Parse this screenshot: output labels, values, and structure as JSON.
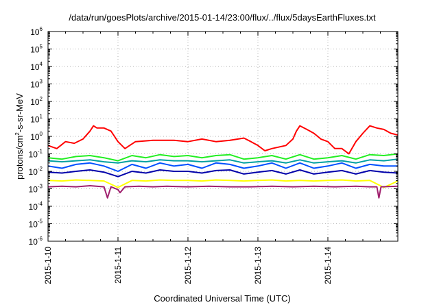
{
  "chart_data": {
    "type": "line",
    "title": "/data/run/goesPlots/archive/2015-01-14/23:00/flux/../flux/5daysEarthFluxes.txt",
    "xlabel": "Coordinated Universal Time (UTC)",
    "ylabel": {
      "base": "protons/cm",
      "sup": "2",
      "rest": "-s-sr-MeV"
    },
    "y_scale": "log",
    "ylim": [
      1e-06,
      1000000.0
    ],
    "y_ticks": [
      {
        "value": 1e-06,
        "base": "10",
        "exp": "-6"
      },
      {
        "value": 1e-05,
        "base": "10",
        "exp": "-5"
      },
      {
        "value": 0.0001,
        "base": "10",
        "exp": "-4"
      },
      {
        "value": 0.001,
        "base": "10",
        "exp": "-3"
      },
      {
        "value": 0.01,
        "base": "10",
        "exp": "-2"
      },
      {
        "value": 0.1,
        "base": "10",
        "exp": "-1"
      },
      {
        "value": 1,
        "base": "10",
        "exp": "0"
      },
      {
        "value": 10,
        "base": "10",
        "exp": "1"
      },
      {
        "value": 100,
        "base": "10",
        "exp": "2"
      },
      {
        "value": 1000,
        "base": "10",
        "exp": "3"
      },
      {
        "value": 10000,
        "base": "10",
        "exp": "4"
      },
      {
        "value": 100000,
        "base": "10",
        "exp": "5"
      },
      {
        "value": 1000000,
        "base": "10",
        "exp": "6"
      }
    ],
    "xlim": [
      "2015-01-10T00:00",
      "2015-01-15T00:00"
    ],
    "x_ticks": [
      "2015-1-10",
      "2015-1-11",
      "2015-1-12",
      "2015-1-13",
      "2015-1-14"
    ],
    "grid": true,
    "series": [
      {
        "color": "#ff0000",
        "points": [
          [
            "2015-01-10T00:00",
            0.3
          ],
          [
            "2015-01-10T03:00",
            0.2
          ],
          [
            "2015-01-10T06:00",
            0.5
          ],
          [
            "2015-01-10T09:00",
            0.4
          ],
          [
            "2015-01-10T12:00",
            0.7
          ],
          [
            "2015-01-10T14:24",
            2.0
          ],
          [
            "2015-01-10T15:36",
            4.0
          ],
          [
            "2015-01-10T16:48",
            3.0
          ],
          [
            "2015-01-10T19:12",
            3.0
          ],
          [
            "2015-01-10T21:36",
            2.0
          ],
          [
            "2015-01-11T00:00",
            0.5
          ],
          [
            "2015-01-11T02:24",
            0.2
          ],
          [
            "2015-01-11T06:00",
            0.5
          ],
          [
            "2015-01-11T12:00",
            0.6
          ],
          [
            "2015-01-11T19:12",
            0.6
          ],
          [
            "2015-01-12T00:00",
            0.5
          ],
          [
            "2015-01-12T04:48",
            0.7
          ],
          [
            "2015-01-12T09:36",
            0.5
          ],
          [
            "2015-01-12T14:24",
            0.6
          ],
          [
            "2015-01-12T19:12",
            0.8
          ],
          [
            "2015-01-12T21:36",
            0.5
          ],
          [
            "2015-01-13T00:00",
            0.3
          ],
          [
            "2015-01-13T02:24",
            0.15
          ],
          [
            "2015-01-13T04:48",
            0.2
          ],
          [
            "2015-01-13T09:36",
            0.3
          ],
          [
            "2015-01-13T12:00",
            0.7
          ],
          [
            "2015-01-13T13:12",
            2.0
          ],
          [
            "2015-01-13T14:24",
            4.0
          ],
          [
            "2015-01-13T16:48",
            2.5
          ],
          [
            "2015-01-13T19:12",
            1.5
          ],
          [
            "2015-01-13T21:36",
            0.7
          ],
          [
            "2015-01-14T00:00",
            0.5
          ],
          [
            "2015-01-14T02:24",
            0.2
          ],
          [
            "2015-01-14T04:48",
            0.2
          ],
          [
            "2015-01-14T07:12",
            0.1
          ],
          [
            "2015-01-14T09:36",
            0.5
          ],
          [
            "2015-01-14T12:00",
            1.5
          ],
          [
            "2015-01-14T14:24",
            4.0
          ],
          [
            "2015-01-14T16:48",
            3.0
          ],
          [
            "2015-01-14T19:12",
            2.5
          ],
          [
            "2015-01-14T21:36",
            1.5
          ],
          [
            "2015-01-15T00:00",
            1.2
          ]
        ]
      },
      {
        "color": "#22ee22",
        "points": [
          [
            "2015-01-10T00:00",
            0.06
          ],
          [
            "2015-01-10T04:48",
            0.05
          ],
          [
            "2015-01-10T09:36",
            0.07
          ],
          [
            "2015-01-10T14:24",
            0.08
          ],
          [
            "2015-01-10T19:12",
            0.06
          ],
          [
            "2015-01-11T00:00",
            0.04
          ],
          [
            "2015-01-11T04:48",
            0.08
          ],
          [
            "2015-01-11T09:36",
            0.06
          ],
          [
            "2015-01-11T14:24",
            0.09
          ],
          [
            "2015-01-11T19:12",
            0.07
          ],
          [
            "2015-01-12T00:00",
            0.08
          ],
          [
            "2015-01-12T04:48",
            0.06
          ],
          [
            "2015-01-12T09:36",
            0.08
          ],
          [
            "2015-01-12T14:24",
            0.09
          ],
          [
            "2015-01-12T19:12",
            0.05
          ],
          [
            "2015-01-13T00:00",
            0.06
          ],
          [
            "2015-01-13T04:48",
            0.08
          ],
          [
            "2015-01-13T09:36",
            0.05
          ],
          [
            "2015-01-13T14:24",
            0.09
          ],
          [
            "2015-01-13T19:12",
            0.05
          ],
          [
            "2015-01-14T00:00",
            0.06
          ],
          [
            "2015-01-14T04:48",
            0.08
          ],
          [
            "2015-01-14T09:36",
            0.05
          ],
          [
            "2015-01-14T14:24",
            0.09
          ],
          [
            "2015-01-14T19:12",
            0.08
          ],
          [
            "2015-01-15T00:00",
            0.1
          ]
        ]
      },
      {
        "color": "#00a0a0",
        "points": [
          [
            "2015-01-10T00:00",
            0.04
          ],
          [
            "2015-01-10T04:48",
            0.035
          ],
          [
            "2015-01-10T09:36",
            0.04
          ],
          [
            "2015-01-10T14:24",
            0.045
          ],
          [
            "2015-01-10T19:12",
            0.035
          ],
          [
            "2015-01-11T00:00",
            0.03
          ],
          [
            "2015-01-11T04:48",
            0.04
          ],
          [
            "2015-01-11T09:36",
            0.035
          ],
          [
            "2015-01-11T14:24",
            0.045
          ],
          [
            "2015-01-11T19:12",
            0.04
          ],
          [
            "2015-01-12T00:00",
            0.04
          ],
          [
            "2015-01-12T04:48",
            0.035
          ],
          [
            "2015-01-12T09:36",
            0.04
          ],
          [
            "2015-01-12T14:24",
            0.045
          ],
          [
            "2015-01-12T19:12",
            0.03
          ],
          [
            "2015-01-13T00:00",
            0.035
          ],
          [
            "2015-01-13T04:48",
            0.04
          ],
          [
            "2015-01-13T09:36",
            0.03
          ],
          [
            "2015-01-13T14:24",
            0.045
          ],
          [
            "2015-01-13T19:12",
            0.03
          ],
          [
            "2015-01-14T00:00",
            0.035
          ],
          [
            "2015-01-14T04:48",
            0.04
          ],
          [
            "2015-01-14T09:36",
            0.03
          ],
          [
            "2015-01-14T14:24",
            0.045
          ],
          [
            "2015-01-14T19:12",
            0.04
          ],
          [
            "2015-01-15T00:00",
            0.05
          ]
        ]
      },
      {
        "color": "#0050ff",
        "points": [
          [
            "2015-01-10T00:00",
            0.02
          ],
          [
            "2015-01-10T04:48",
            0.015
          ],
          [
            "2015-01-10T09:36",
            0.025
          ],
          [
            "2015-01-10T14:24",
            0.03
          ],
          [
            "2015-01-10T19:12",
            0.02
          ],
          [
            "2015-01-11T00:00",
            0.01
          ],
          [
            "2015-01-11T04:48",
            0.025
          ],
          [
            "2015-01-11T09:36",
            0.015
          ],
          [
            "2015-01-11T14:24",
            0.03
          ],
          [
            "2015-01-11T19:12",
            0.02
          ],
          [
            "2015-01-12T00:00",
            0.025
          ],
          [
            "2015-01-12T04:48",
            0.015
          ],
          [
            "2015-01-12T09:36",
            0.03
          ],
          [
            "2015-01-12T14:24",
            0.025
          ],
          [
            "2015-01-12T19:12",
            0.015
          ],
          [
            "2015-01-13T00:00",
            0.02
          ],
          [
            "2015-01-13T04:48",
            0.03
          ],
          [
            "2015-01-13T09:36",
            0.015
          ],
          [
            "2015-01-13T14:24",
            0.03
          ],
          [
            "2015-01-13T19:12",
            0.015
          ],
          [
            "2015-01-14T00:00",
            0.02
          ],
          [
            "2015-01-14T04:48",
            0.03
          ],
          [
            "2015-01-14T09:36",
            0.015
          ],
          [
            "2015-01-14T14:24",
            0.025
          ],
          [
            "2015-01-14T19:12",
            0.02
          ],
          [
            "2015-01-15T00:00",
            0.02
          ]
        ]
      },
      {
        "color": "#0000aa",
        "points": [
          [
            "2015-01-10T00:00",
            0.009
          ],
          [
            "2015-01-10T04:48",
            0.008
          ],
          [
            "2015-01-10T09:36",
            0.01
          ],
          [
            "2015-01-10T14:24",
            0.012
          ],
          [
            "2015-01-10T19:12",
            0.009
          ],
          [
            "2015-01-11T00:00",
            0.005
          ],
          [
            "2015-01-11T04:48",
            0.01
          ],
          [
            "2015-01-11T09:36",
            0.008
          ],
          [
            "2015-01-11T14:24",
            0.012
          ],
          [
            "2015-01-11T19:12",
            0.01
          ],
          [
            "2015-01-12T00:00",
            0.01
          ],
          [
            "2015-01-12T04:48",
            0.008
          ],
          [
            "2015-01-12T09:36",
            0.011
          ],
          [
            "2015-01-12T14:24",
            0.012
          ],
          [
            "2015-01-12T19:12",
            0.007
          ],
          [
            "2015-01-13T00:00",
            0.009
          ],
          [
            "2015-01-13T04:48",
            0.011
          ],
          [
            "2015-01-13T09:36",
            0.007
          ],
          [
            "2015-01-13T14:24",
            0.012
          ],
          [
            "2015-01-13T19:12",
            0.007
          ],
          [
            "2015-01-14T00:00",
            0.009
          ],
          [
            "2015-01-14T04:48",
            0.011
          ],
          [
            "2015-01-14T09:36",
            0.007
          ],
          [
            "2015-01-14T14:24",
            0.011
          ],
          [
            "2015-01-14T19:12",
            0.009
          ],
          [
            "2015-01-15T00:00",
            0.008
          ]
        ]
      },
      {
        "color": "#ffff00",
        "points": [
          [
            "2015-01-10T00:00",
            0.003
          ],
          [
            "2015-01-10T04:48",
            0.0028
          ],
          [
            "2015-01-10T09:36",
            0.0032
          ],
          [
            "2015-01-10T14:24",
            0.003
          ],
          [
            "2015-01-10T19:12",
            0.0028
          ],
          [
            "2015-01-11T00:00",
            0.0012
          ],
          [
            "2015-01-11T04:48",
            0.003
          ],
          [
            "2015-01-11T09:36",
            0.0028
          ],
          [
            "2015-01-11T14:24",
            0.0032
          ],
          [
            "2015-01-11T19:12",
            0.003
          ],
          [
            "2015-01-12T00:00",
            0.003
          ],
          [
            "2015-01-12T04:48",
            0.0028
          ],
          [
            "2015-01-12T09:36",
            0.0032
          ],
          [
            "2015-01-12T14:24",
            0.003
          ],
          [
            "2015-01-12T19:12",
            0.0028
          ],
          [
            "2015-01-13T00:00",
            0.003
          ],
          [
            "2015-01-13T04:48",
            0.0032
          ],
          [
            "2015-01-13T09:36",
            0.0028
          ],
          [
            "2015-01-13T14:24",
            0.003
          ],
          [
            "2015-01-13T19:12",
            0.0028
          ],
          [
            "2015-01-14T00:00",
            0.003
          ],
          [
            "2015-01-14T04:48",
            0.0032
          ],
          [
            "2015-01-14T09:36",
            0.0028
          ],
          [
            "2015-01-14T14:24",
            0.003
          ],
          [
            "2015-01-14T19:12",
            0.0012
          ],
          [
            "2015-01-15T00:00",
            0.0028
          ]
        ]
      },
      {
        "color": "#a0206e",
        "points": [
          [
            "2015-01-10T00:00",
            0.0013
          ],
          [
            "2015-01-10T04:48",
            0.0014
          ],
          [
            "2015-01-10T09:36",
            0.0013
          ],
          [
            "2015-01-10T14:24",
            0.0015
          ],
          [
            "2015-01-10T19:12",
            0.0013
          ],
          [
            "2015-01-10T20:24",
            0.0003
          ],
          [
            "2015-01-10T21:36",
            0.0013
          ],
          [
            "2015-01-11T00:00",
            0.0009
          ],
          [
            "2015-01-11T00:43",
            0.0006
          ],
          [
            "2015-01-11T02:24",
            0.0013
          ],
          [
            "2015-01-11T07:12",
            0.0014
          ],
          [
            "2015-01-11T12:00",
            0.0013
          ],
          [
            "2015-01-11T16:48",
            0.0014
          ],
          [
            "2015-01-12T00:00",
            0.0013
          ],
          [
            "2015-01-12T07:12",
            0.0014
          ],
          [
            "2015-01-12T14:24",
            0.0013
          ],
          [
            "2015-01-12T21:36",
            0.0013
          ],
          [
            "2015-01-13T04:48",
            0.0014
          ],
          [
            "2015-01-13T12:00",
            0.0013
          ],
          [
            "2015-01-13T19:12",
            0.0014
          ],
          [
            "2015-01-14T02:24",
            0.0013
          ],
          [
            "2015-01-14T09:36",
            0.0014
          ],
          [
            "2015-01-14T14:24",
            0.0013
          ],
          [
            "2015-01-14T16:48",
            0.0013
          ],
          [
            "2015-01-14T17:31",
            0.0003
          ],
          [
            "2015-01-14T18:14",
            0.0013
          ],
          [
            "2015-01-15T00:00",
            0.0014
          ]
        ]
      }
    ]
  }
}
